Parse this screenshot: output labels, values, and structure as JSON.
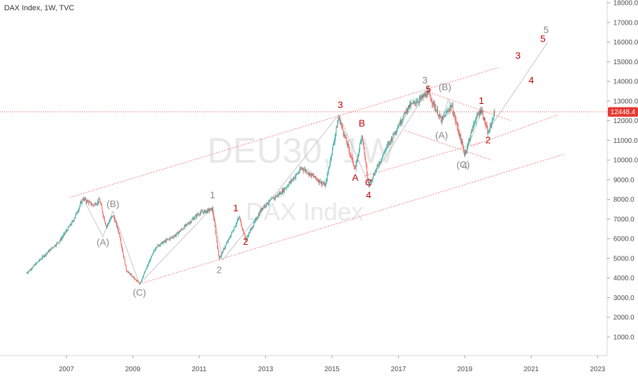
{
  "chart_data": {
    "type": "candlestick",
    "title": "DAX Index, 1W, TVC",
    "watermark_symbol": "DEU30, 1W",
    "watermark_name": "DAX Index",
    "ylim": [
      1000,
      18000
    ],
    "y_ticks": [
      "18000.0",
      "17000.0",
      "16000.0",
      "15000.0",
      "14000.0",
      "13000.0",
      "12000.0",
      "11000.0",
      "10000.0",
      "9000.0",
      "8000.0",
      "7000.0",
      "6000.0",
      "5000.0",
      "4000.0",
      "3000.0",
      "2000.0",
      "1000.0"
    ],
    "x_ticks": [
      "2007",
      "2009",
      "2011",
      "2013",
      "2015",
      "2017",
      "2019",
      "2021",
      "2023"
    ],
    "last_price": "12448.4",
    "colors": {
      "up": "#26a69a",
      "down": "#ef5350",
      "annotation_red": "#c00000",
      "annotation_gray": "#888888",
      "channel": "#f08080",
      "price_line": "#e53935"
    },
    "price_path": [
      {
        "x": 2005.8,
        "y": 4250
      },
      {
        "x": 2006.3,
        "y": 5100
      },
      {
        "x": 2006.8,
        "y": 5900
      },
      {
        "x": 2007.2,
        "y": 6900
      },
      {
        "x": 2007.5,
        "y": 8050
      },
      {
        "x": 2007.8,
        "y": 7700
      },
      {
        "x": 2008.0,
        "y": 7950
      },
      {
        "x": 2008.2,
        "y": 6600
      },
      {
        "x": 2008.4,
        "y": 7200
      },
      {
        "x": 2008.6,
        "y": 6200
      },
      {
        "x": 2008.8,
        "y": 4400
      },
      {
        "x": 2009.2,
        "y": 3700
      },
      {
        "x": 2009.7,
        "y": 5600
      },
      {
        "x": 2010.3,
        "y": 6200
      },
      {
        "x": 2011.0,
        "y": 7300
      },
      {
        "x": 2011.4,
        "y": 7500
      },
      {
        "x": 2011.6,
        "y": 5000
      },
      {
        "x": 2011.9,
        "y": 6000
      },
      {
        "x": 2012.2,
        "y": 7100
      },
      {
        "x": 2012.4,
        "y": 5950
      },
      {
        "x": 2012.9,
        "y": 7600
      },
      {
        "x": 2013.5,
        "y": 8400
      },
      {
        "x": 2014.1,
        "y": 9600
      },
      {
        "x": 2014.8,
        "y": 8700
      },
      {
        "x": 2015.2,
        "y": 12200
      },
      {
        "x": 2015.7,
        "y": 9500
      },
      {
        "x": 2015.9,
        "y": 11300
      },
      {
        "x": 2016.1,
        "y": 8700
      },
      {
        "x": 2016.6,
        "y": 10500
      },
      {
        "x": 2017.3,
        "y": 12700
      },
      {
        "x": 2017.9,
        "y": 13400
      },
      {
        "x": 2018.3,
        "y": 12000
      },
      {
        "x": 2018.6,
        "y": 12800
      },
      {
        "x": 2019.0,
        "y": 10300
      },
      {
        "x": 2019.3,
        "y": 12000
      },
      {
        "x": 2019.5,
        "y": 12600
      },
      {
        "x": 2019.7,
        "y": 11300
      },
      {
        "x": 2019.9,
        "y": 12448
      }
    ],
    "channels": [
      {
        "x1": 2007.1,
        "y1": 8100,
        "x2": 2020.0,
        "y2": 14700
      },
      {
        "x1": 2009.2,
        "y1": 3700,
        "x2": 2022.0,
        "y2": 10300
      },
      {
        "x1": 2018.0,
        "y1": 13400,
        "x2": 2020.4,
        "y2": 12000
      },
      {
        "x1": 2017.2,
        "y1": 11500,
        "x2": 2019.8,
        "y2": 10000
      },
      {
        "x1": 2016.0,
        "y1": 9200,
        "x2": 2019.5,
        "y2": 10900
      },
      {
        "x1": 2019.2,
        "y1": 10700,
        "x2": 2021.8,
        "y2": 12300
      }
    ],
    "wave_paths": [
      [
        {
          "x": 2007.5,
          "y": 8050
        },
        {
          "x": 2008.1,
          "y": 6100
        },
        {
          "x": 2008.4,
          "y": 7400
        },
        {
          "x": 2009.2,
          "y": 3700
        }
      ],
      [
        {
          "x": 2009.2,
          "y": 3700
        },
        {
          "x": 2011.4,
          "y": 7600
        },
        {
          "x": 2011.7,
          "y": 4900
        },
        {
          "x": 2015.2,
          "y": 12300
        },
        {
          "x": 2016.1,
          "y": 8800
        },
        {
          "x": 2017.9,
          "y": 13600
        }
      ],
      [
        {
          "x": 2017.9,
          "y": 13400
        },
        {
          "x": 2018.3,
          "y": 11900
        },
        {
          "x": 2018.5,
          "y": 13100
        },
        {
          "x": 2019.0,
          "y": 10200
        },
        {
          "x": 2019.5,
          "y": 12500
        },
        {
          "x": 2019.7,
          "y": 11500
        },
        {
          "x": 2021.5,
          "y": 16000
        }
      ]
    ],
    "annotations": [
      {
        "text": "(B)",
        "x": 2008.4,
        "y": 7600,
        "color": "gray"
      },
      {
        "text": "(A)",
        "x": 2008.1,
        "y": 5650,
        "color": "gray"
      },
      {
        "text": "(C)",
        "x": 2009.2,
        "y": 3100,
        "color": "gray"
      },
      {
        "text": "1",
        "x": 2011.4,
        "y": 8050,
        "color": "gray"
      },
      {
        "text": "2",
        "x": 2011.6,
        "y": 4250,
        "color": "gray"
      },
      {
        "text": "1",
        "x": 2012.1,
        "y": 7400,
        "color": "red"
      },
      {
        "text": "2",
        "x": 2012.4,
        "y": 5700,
        "color": "red"
      },
      {
        "text": "3",
        "x": 2015.25,
        "y": 12650,
        "color": "red"
      },
      {
        "text": "B",
        "x": 2015.9,
        "y": 11700,
        "color": "red"
      },
      {
        "text": "A",
        "x": 2015.7,
        "y": 8950,
        "color": "red"
      },
      {
        "text": "C",
        "x": 2016.1,
        "y": 8700,
        "color": "red"
      },
      {
        "text": "4",
        "x": 2016.1,
        "y": 8050,
        "color": "red"
      },
      {
        "text": "3",
        "x": 2017.8,
        "y": 13900,
        "color": "gray"
      },
      {
        "text": "5",
        "x": 2017.9,
        "y": 13450,
        "color": "red"
      },
      {
        "text": "(B)",
        "x": 2018.4,
        "y": 13550,
        "color": "gray"
      },
      {
        "text": "(A)",
        "x": 2018.3,
        "y": 11100,
        "color": "gray"
      },
      {
        "text": "(C)",
        "x": 2018.95,
        "y": 9600,
        "color": "gray"
      },
      {
        "text": "4",
        "x": 2019.0,
        "y": 9550,
        "color": "gray"
      },
      {
        "text": "1",
        "x": 2019.5,
        "y": 12850,
        "color": "red"
      },
      {
        "text": "2",
        "x": 2019.7,
        "y": 10850,
        "color": "red"
      },
      {
        "text": "3",
        "x": 2020.6,
        "y": 15150,
        "color": "red"
      },
      {
        "text": "4",
        "x": 2021.0,
        "y": 13900,
        "color": "red"
      },
      {
        "text": "5",
        "x": 2021.35,
        "y": 16000,
        "color": "red"
      },
      {
        "text": "5",
        "x": 2021.45,
        "y": 16450,
        "color": "gray"
      }
    ]
  }
}
